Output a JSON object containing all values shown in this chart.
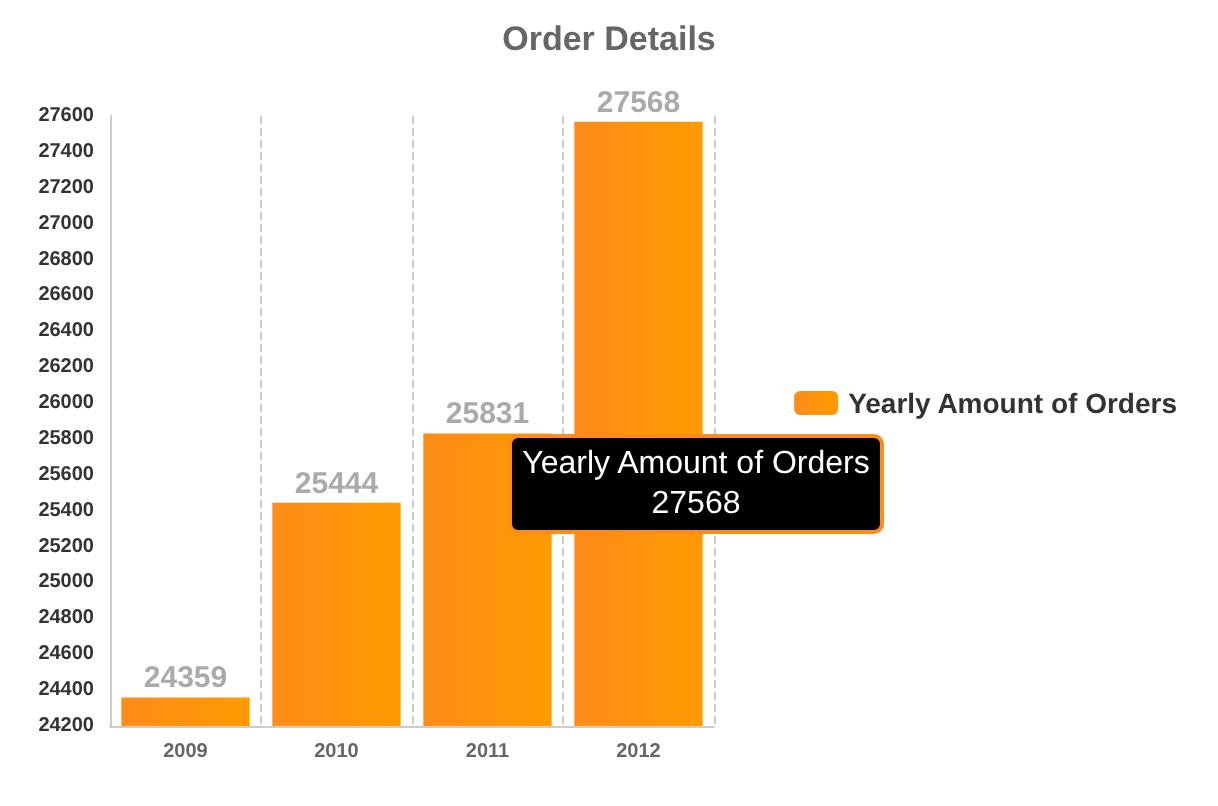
{
  "chart_data": {
    "type": "bar",
    "title": "Order Details",
    "categories": [
      "2009",
      "2010",
      "2011",
      "2012"
    ],
    "series": [
      {
        "name": "Yearly Amount of Orders",
        "color": "#ff8c1a",
        "values": [
          24359,
          25444,
          25831,
          27568
        ]
      }
    ],
    "ylim": [
      24200,
      27600
    ],
    "yticks": [
      24200,
      24400,
      24600,
      24800,
      25000,
      25200,
      25400,
      25600,
      25800,
      26000,
      26200,
      26400,
      26600,
      26800,
      27000,
      27200,
      27400,
      27600
    ],
    "grid": "x",
    "legend": "right",
    "data_labels": true,
    "annotations": [
      "Yearly Amount of Orders\n27568"
    ]
  }
}
